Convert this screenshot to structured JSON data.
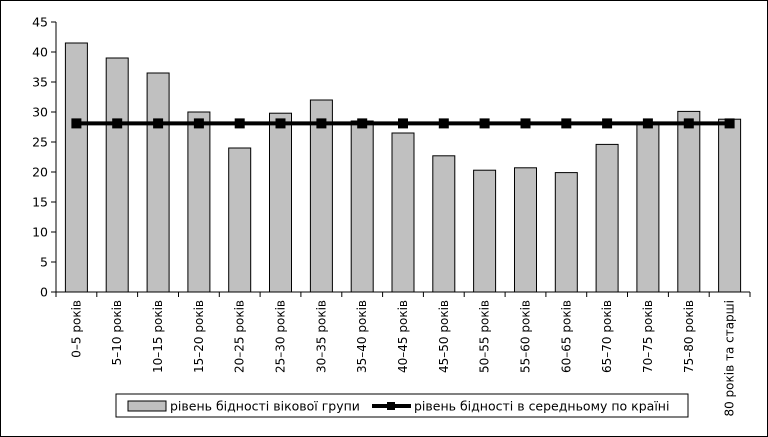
{
  "chart_data": {
    "type": "bar",
    "categories": [
      "0–5 років",
      "5–10 років",
      "10–15 років",
      "15–20 років",
      "20–25 років",
      "25–30 років",
      "30–35 років",
      "35–40 років",
      "40–45 років",
      "45–50 років",
      "50–55 років",
      "55–60 років",
      "60–65 років",
      "65–70 років",
      "70–75 років",
      "75–80 років",
      "80 років та старші"
    ],
    "series": [
      {
        "name": "рівень бідності вікової групи",
        "kind": "bar",
        "color": "#c0c0c0",
        "values": [
          41.5,
          39.0,
          36.5,
          30.0,
          24.0,
          29.8,
          32.0,
          28.5,
          26.5,
          22.7,
          20.3,
          20.7,
          19.9,
          24.6,
          28.0,
          30.1,
          28.8
        ]
      },
      {
        "name": "рівень бідності в середньому по країні",
        "kind": "line",
        "color": "#000000",
        "values": [
          28.1,
          28.1,
          28.1,
          28.1,
          28.1,
          28.1,
          28.1,
          28.1,
          28.1,
          28.1,
          28.1,
          28.1,
          28.1,
          28.1,
          28.1,
          28.1,
          28.1
        ]
      }
    ],
    "yticks": [
      "0",
      "5",
      "10",
      "15",
      "20",
      "25",
      "30",
      "35",
      "40",
      "45"
    ],
    "ylim": [
      0,
      45
    ],
    "grid": false,
    "legend": "bottom",
    "title": "",
    "xlabel": "",
    "ylabel": ""
  }
}
